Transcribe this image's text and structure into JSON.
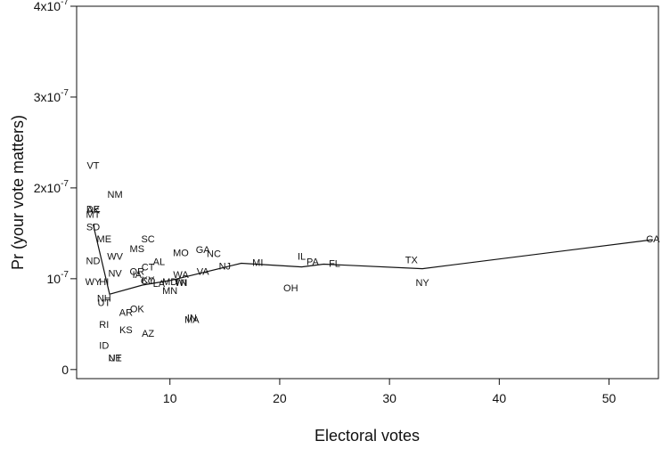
{
  "chart_data": {
    "type": "scatter",
    "xlabel": "Electoral votes",
    "ylabel": "Pr (your vote matters)",
    "xlim": [
      1.5,
      54.5
    ],
    "ylim": [
      -1e-08,
      4e-07
    ],
    "xticks": [
      10,
      20,
      30,
      40,
      50
    ],
    "yticks": [
      {
        "value": 0,
        "label": "0"
      },
      {
        "value": 1e-07,
        "label": "10^-7"
      },
      {
        "value": 2e-07,
        "label": "2x10^-7"
      },
      {
        "value": 3e-07,
        "label": "3x10^-7"
      },
      {
        "value": 4e-07,
        "label": "4x10^-7"
      }
    ],
    "points": [
      {
        "label": "VT",
        "x": 3,
        "y": 2.25e-07
      },
      {
        "label": "NM",
        "x": 5,
        "y": 1.93e-07
      },
      {
        "label": "DE",
        "x": 3,
        "y": 1.77e-07
      },
      {
        "label": "AK",
        "x": 3,
        "y": 1.76e-07
      },
      {
        "label": "MT",
        "x": 3,
        "y": 1.71e-07
      },
      {
        "label": "SD",
        "x": 3,
        "y": 1.57e-07
      },
      {
        "label": "ME",
        "x": 4,
        "y": 1.44e-07
      },
      {
        "label": "SC",
        "x": 8,
        "y": 1.44e-07
      },
      {
        "label": "MS",
        "x": 7,
        "y": 1.33e-07
      },
      {
        "label": "GA",
        "x": 13,
        "y": 1.32e-07
      },
      {
        "label": "MO",
        "x": 11,
        "y": 1.29e-07
      },
      {
        "label": "NC",
        "x": 14,
        "y": 1.28e-07
      },
      {
        "label": "WV",
        "x": 5,
        "y": 1.25e-07
      },
      {
        "label": "ND",
        "x": 3,
        "y": 1.2e-07
      },
      {
        "label": "AL",
        "x": 9,
        "y": 1.19e-07
      },
      {
        "label": "IL",
        "x": 22,
        "y": 1.25e-07
      },
      {
        "label": "PA",
        "x": 23,
        "y": 1.19e-07
      },
      {
        "label": "FL",
        "x": 25,
        "y": 1.17e-07
      },
      {
        "label": "TX",
        "x": 32,
        "y": 1.21e-07
      },
      {
        "label": "CA",
        "x": 54,
        "y": 1.44e-07
      },
      {
        "label": "MI",
        "x": 18,
        "y": 1.18e-07
      },
      {
        "label": "NJ",
        "x": 15,
        "y": 1.14e-07
      },
      {
        "label": "CT",
        "x": 8,
        "y": 1.13e-07
      },
      {
        "label": "VA",
        "x": 13,
        "y": 1.08e-07
      },
      {
        "label": "WA",
        "x": 11,
        "y": 1.05e-07
      },
      {
        "label": "OR",
        "x": 7,
        "y": 1.08e-07
      },
      {
        "label": "NV",
        "x": 5,
        "y": 1.06e-07
      },
      {
        "label": "IA",
        "x": 7,
        "y": 1.05e-07
      },
      {
        "label": "KY",
        "x": 8,
        "y": 9.9e-08
      },
      {
        "label": "CO",
        "x": 8,
        "y": 9.8e-08
      },
      {
        "label": "LA",
        "x": 9,
        "y": 9.5e-08
      },
      {
        "label": "MD",
        "x": 10,
        "y": 9.7e-08
      },
      {
        "label": "WI",
        "x": 11,
        "y": 9.6e-08
      },
      {
        "label": "TN",
        "x": 11,
        "y": 9.6e-08
      },
      {
        "label": "WY",
        "x": 3,
        "y": 9.7e-08
      },
      {
        "label": "HI",
        "x": 4,
        "y": 9.7e-08
      },
      {
        "label": "MN",
        "x": 10,
        "y": 8.7e-08
      },
      {
        "label": "OH",
        "x": 21,
        "y": 9e-08
      },
      {
        "label": "NY",
        "x": 33,
        "y": 9.6e-08
      },
      {
        "label": "NH",
        "x": 4,
        "y": 7.9e-08
      },
      {
        "label": "UT",
        "x": 4,
        "y": 7.4e-08
      },
      {
        "label": "OK",
        "x": 7,
        "y": 6.7e-08
      },
      {
        "label": "AR",
        "x": 6,
        "y": 6.3e-08
      },
      {
        "label": "IN",
        "x": 12,
        "y": 5.7e-08
      },
      {
        "label": "MA",
        "x": 12,
        "y": 5.5e-08
      },
      {
        "label": "RI",
        "x": 4,
        "y": 5e-08
      },
      {
        "label": "KS",
        "x": 6,
        "y": 4.4e-08
      },
      {
        "label": "AZ",
        "x": 8,
        "y": 4e-08
      },
      {
        "label": "ID",
        "x": 4,
        "y": 2.7e-08
      },
      {
        "label": "NE",
        "x": 5,
        "y": 1.3e-08
      },
      {
        "label": "UT",
        "x": 5,
        "y": 1.3e-08
      }
    ],
    "fit_line": {
      "x": [
        3,
        4.5,
        7.5,
        10,
        16.5,
        22,
        24,
        33,
        54
      ],
      "y": [
        1.6e-07,
        8.3e-08,
        9.3e-08,
        9.8e-08,
        1.17e-07,
        1.13e-07,
        1.16e-07,
        1.11e-07,
        1.43e-07
      ]
    },
    "grid": false,
    "legend": "none"
  },
  "colors": {
    "ink": "#111111",
    "background": "#ffffff"
  }
}
